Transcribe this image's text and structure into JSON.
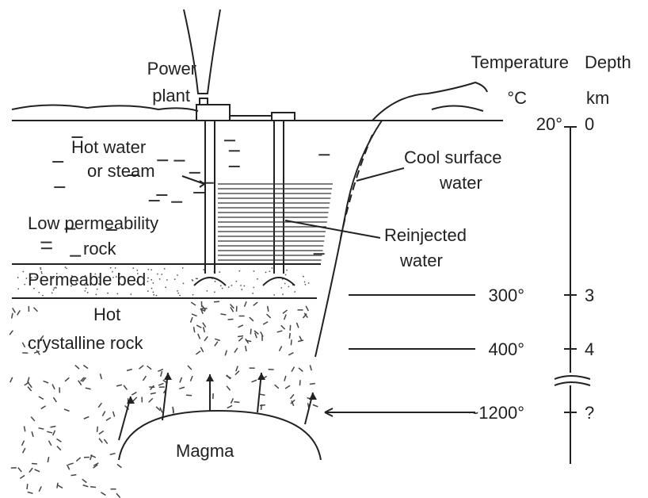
{
  "power_plant": [
    "Power",
    "plant"
  ],
  "scale": {
    "temperature_header": "Temperature",
    "temperature_unit": "°C",
    "depth_header": "Depth",
    "depth_unit": "km",
    "levels": [
      {
        "temperature": "20°",
        "depth": "0"
      },
      {
        "temperature": "300°",
        "depth": "3"
      },
      {
        "temperature": "400°",
        "depth": "4"
      },
      {
        "temperature": "~1200°",
        "depth": "?"
      }
    ]
  },
  "labels": {
    "hot_water": [
      "Hot water",
      "or steam"
    ],
    "cool_water": [
      "Cool surface",
      "water"
    ],
    "low_permeability": [
      "Low permeability",
      "rock"
    ],
    "reinjected": [
      "Reinjected",
      "water"
    ],
    "permeable_bed": "Permeable bed",
    "crystalline": [
      "Hot",
      "crystalline rock"
    ],
    "magma": "Magma"
  }
}
